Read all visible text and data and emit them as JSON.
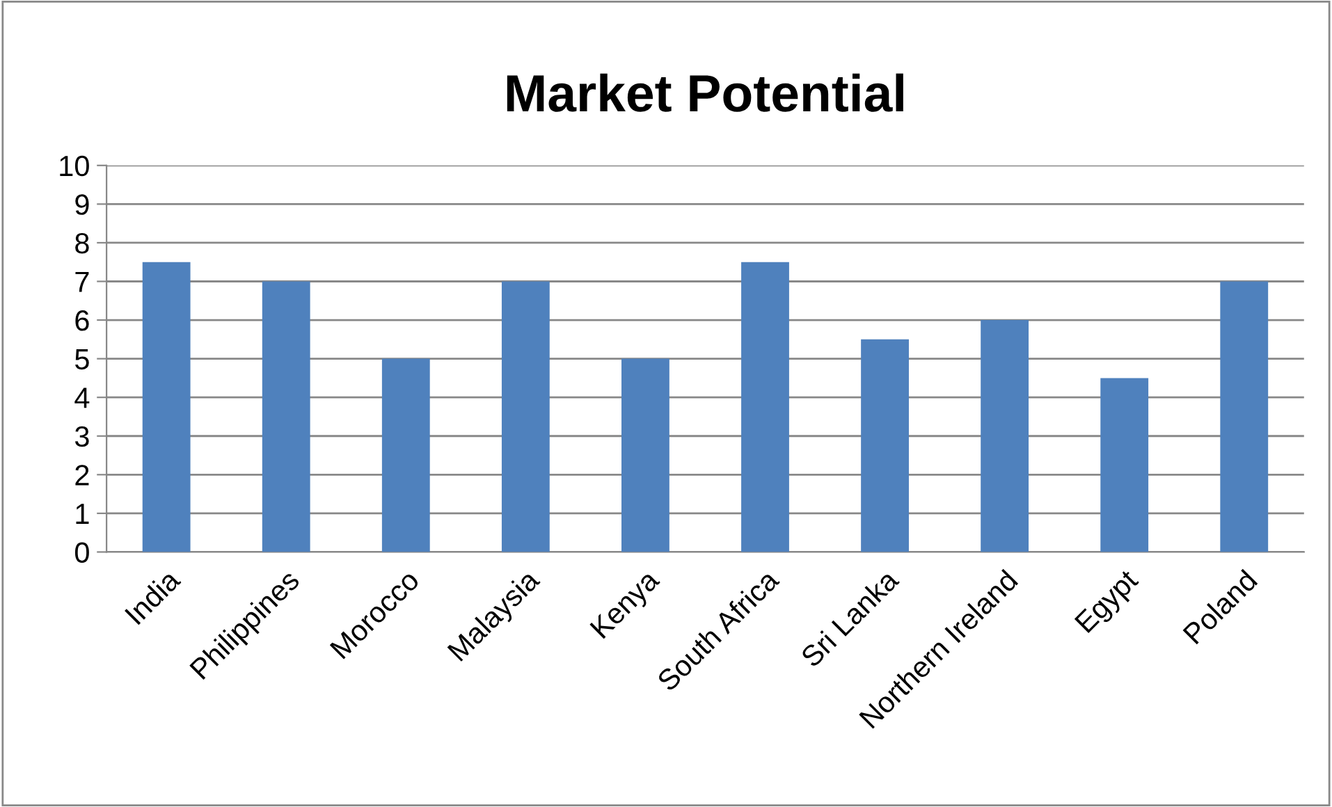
{
  "chart_data": {
    "type": "bar",
    "title": "Market Potential",
    "categories": [
      "India",
      "Philippines",
      "Morocco",
      "Malaysia",
      "Kenya",
      "South Africa",
      "Sri Lanka",
      "Northern Ireland",
      "Egypt",
      "Poland"
    ],
    "values": [
      7.5,
      7,
      5,
      7,
      5,
      7.5,
      5.5,
      6,
      4.5,
      7
    ],
    "color": "#4f81bd",
    "ylim": [
      0,
      10
    ],
    "yticks": [
      0,
      1,
      2,
      3,
      4,
      5,
      6,
      7,
      8,
      9,
      10
    ],
    "grid": "y"
  }
}
